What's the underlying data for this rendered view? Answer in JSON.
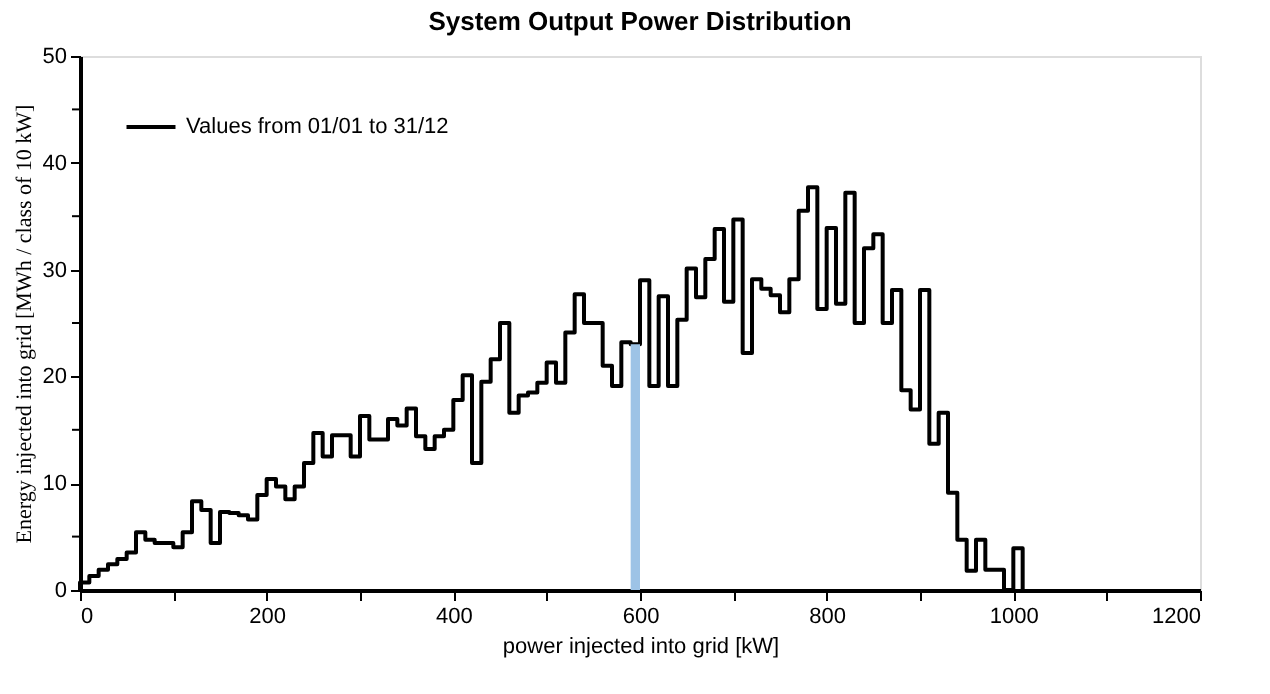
{
  "chart_data": {
    "type": "histogram",
    "title": "System Output Power Distribution",
    "xlabel": "power injected into grid [kW]",
    "ylabel": "Energy injected into grid [MWh / class of 10 kW]",
    "bins": [
      0,
      10,
      20,
      30,
      40,
      50,
      60,
      70,
      80,
      90,
      100,
      110,
      120,
      130,
      140,
      150,
      160,
      170,
      180,
      190,
      200,
      210,
      220,
      230,
      240,
      250,
      260,
      270,
      280,
      290,
      300,
      310,
      320,
      330,
      340,
      350,
      360,
      370,
      380,
      390,
      400,
      410,
      420,
      430,
      440,
      450,
      460,
      470,
      480,
      490,
      500,
      510,
      520,
      530,
      540,
      550,
      560,
      570,
      580,
      590,
      600,
      610,
      620,
      630,
      640,
      650,
      660,
      670,
      680,
      690,
      700,
      710,
      720,
      730,
      740,
      750,
      760,
      770,
      780,
      790,
      800,
      810,
      820,
      830,
      840,
      850,
      860,
      870,
      880,
      890,
      900,
      910,
      920,
      930,
      940,
      950,
      960,
      970,
      980,
      990,
      1000,
      1010
    ],
    "series": [
      {
        "name": "Values from 01/01 to 31/12",
        "color": "#000000",
        "values": [
          0.7,
          1.3,
          1.9,
          2.4,
          2.9,
          3.5,
          5.4,
          4.7,
          4.4,
          4.4,
          4.0,
          5.4,
          8.3,
          7.5,
          4.4,
          7.3,
          7.2,
          7.0,
          6.6,
          8.9,
          10.4,
          9.7,
          8.5,
          9.7,
          11.9,
          14.7,
          12.5,
          14.5,
          14.5,
          12.5,
          16.3,
          14.1,
          14.1,
          16.0,
          15.4,
          17.0,
          14.4,
          13.2,
          14.4,
          15.0,
          17.8,
          20.1,
          11.9,
          19.5,
          21.6,
          25.0,
          16.6,
          18.2,
          18.5,
          19.4,
          21.3,
          19.4,
          24.1,
          27.7,
          25.0,
          25.0,
          21.0,
          19.1,
          23.2,
          23.0,
          29.0,
          19.1,
          27.5,
          19.1,
          25.3,
          30.1,
          27.4,
          31.0,
          33.8,
          27.0,
          34.7,
          22.2,
          29.1,
          28.2,
          27.6,
          26.0,
          29.1,
          35.5,
          37.7,
          26.3,
          33.9,
          26.8,
          37.2,
          25.0,
          32.0,
          33.3,
          25.0,
          28.1,
          18.7,
          16.9,
          28.1,
          13.7,
          16.6,
          9.1,
          4.7,
          1.8,
          4.7,
          1.9,
          1.9,
          0,
          3.9
        ]
      },
      {
        "type": "bar",
        "x": [
          595
        ],
        "color": "#9dc3e6",
        "values": [
          23.0
        ]
      }
    ],
    "xlim": [
      0,
      1200
    ],
    "ylim": [
      0,
      50
    ],
    "xticks": [
      0,
      {
        "value": 100,
        "label": null
      },
      200,
      {
        "value": 300,
        "label": null
      },
      400,
      {
        "value": 500,
        "label": null
      },
      600,
      {
        "value": 700,
        "label": null
      },
      800,
      {
        "value": 900,
        "label": null
      },
      1000,
      {
        "value": 1100,
        "label": null
      },
      1200
    ],
    "yticks": [
      0,
      {
        "value": 5,
        "label": null
      },
      10,
      {
        "value": 15,
        "label": null
      },
      20,
      {
        "value": 25,
        "label": null
      },
      30,
      {
        "value": 35,
        "label": null
      },
      40,
      {
        "value": 45,
        "label": null
      },
      50
    ],
    "grid": false,
    "legend": "top left"
  }
}
